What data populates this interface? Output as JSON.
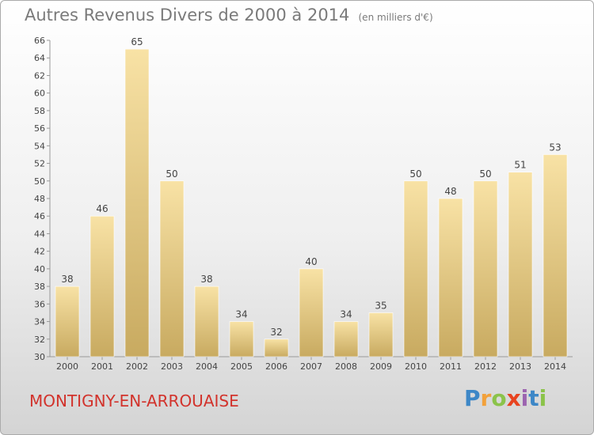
{
  "title": "Autres Revenus Divers de 2000 à 2014",
  "subtitle": "(en milliers d'€)",
  "commune": "MONTIGNY-EN-ARROUAISE",
  "logo": {
    "letters": [
      "P",
      "r",
      "o",
      "x",
      "i",
      "t",
      "i"
    ],
    "colors": [
      "#3d87c7",
      "#f2a13a",
      "#8bc34a",
      "#e8431f",
      "#9c64b0",
      "#3d87c7",
      "#8bc34a"
    ]
  },
  "colors": {
    "bar_top": "#f8e2a5",
    "bar_bottom": "#c8aa60",
    "axis": "#999999",
    "grid": "#dddddd",
    "text": "#444444",
    "commune": "#d2332c"
  },
  "chart_data": {
    "type": "bar",
    "categories": [
      "2000",
      "2001",
      "2002",
      "2003",
      "2004",
      "2005",
      "2006",
      "2007",
      "2008",
      "2009",
      "2010",
      "2011",
      "2012",
      "2013",
      "2014"
    ],
    "values": [
      38,
      46,
      65,
      50,
      38,
      34,
      32,
      40,
      34,
      35,
      50,
      48,
      50,
      51,
      53
    ],
    "ylim": [
      30,
      66
    ],
    "yticks": [
      30,
      32,
      34,
      36,
      38,
      40,
      42,
      44,
      46,
      48,
      50,
      52,
      54,
      56,
      58,
      60,
      62,
      64,
      66
    ],
    "grid": false,
    "data_labels": true
  }
}
